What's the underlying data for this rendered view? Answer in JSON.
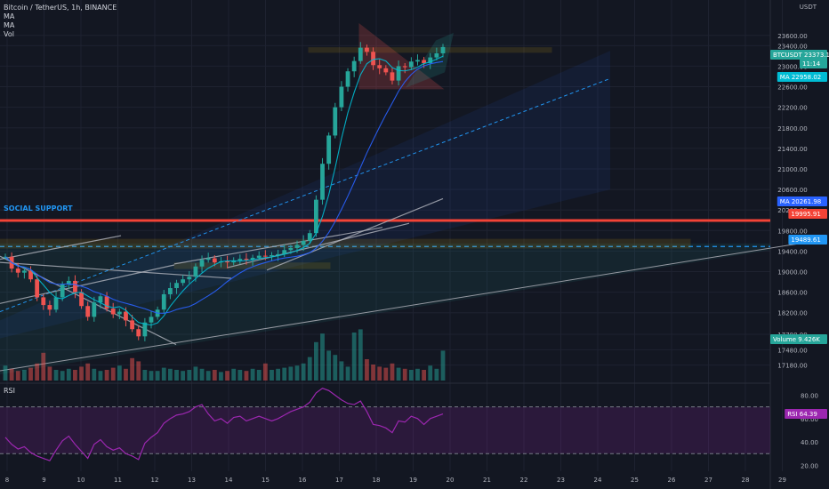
{
  "header": {
    "symbol_line": "Bitcoin / TetherUS, 1h, BINANCE",
    "indicators": [
      "MA",
      "MA",
      "Vol"
    ]
  },
  "rsi_label": "RSI",
  "annotation": "SOCIAL SUPPORT",
  "currency": "USDT",
  "colors": {
    "background": "#131722",
    "up": "#26a69a",
    "down": "#ef5350",
    "support": "#f44336",
    "rsi": "#9c27b0",
    "box": "#f0b90b"
  },
  "chart_data": {
    "type": "candlestick",
    "price_axis": {
      "min": 16880,
      "max": 24150,
      "ticks": [
        17180,
        17480,
        17780,
        18200,
        18600,
        19000,
        19400,
        19800,
        20200,
        20600,
        21000,
        21400,
        21800,
        22200,
        22600,
        23000,
        23400,
        23600
      ]
    },
    "x_axis_labels": [
      "8",
      "9",
      "10",
      "11",
      "12",
      "13",
      "14",
      "15",
      "16",
      "17",
      "18",
      "19",
      "20",
      "21",
      "22",
      "23",
      "24",
      "25",
      "26",
      "27",
      "28",
      "29"
    ],
    "price_tags": [
      {
        "label": "BTCUSDT",
        "value": "23373.11",
        "color": "#26a69a"
      },
      {
        "label": "",
        "value": "11:14",
        "color": "#26a69a"
      },
      {
        "label": "MA",
        "value": "22958.02",
        "color": "#00bcd4"
      },
      {
        "label": "MA",
        "value": "20261.98",
        "color": "#2962ff"
      },
      {
        "label": "",
        "value": "19995.91",
        "color": "#f44336"
      },
      {
        "label": "",
        "value": "19489.61",
        "color": "#2196f3"
      },
      {
        "label": "Volume",
        "value": "9.426K",
        "color": "#26a69a"
      },
      {
        "label": "RSI",
        "value": "64.39",
        "color": "#9c27b0"
      }
    ],
    "rsi_axis": {
      "min": 15,
      "max": 88,
      "ticks": [
        20,
        40,
        60,
        80
      ],
      "bands": [
        30,
        70
      ]
    },
    "key_levels": {
      "support": 19995.91,
      "dashed": 19489.61
    },
    "closes": [
      19290,
      19060,
      18980,
      19020,
      18850,
      18500,
      18350,
      18260,
      18500,
      18750,
      18820,
      18600,
      18330,
      18120,
      18400,
      18520,
      18280,
      18170,
      18220,
      18050,
      17880,
      17740,
      18010,
      18120,
      18260,
      18560,
      18680,
      18780,
      18850,
      18900,
      19100,
      19230,
      19260,
      19180,
      19200,
      19180,
      19220,
      19250,
      19230,
      19270,
      19310,
      19300,
      19320,
      19340,
      19420,
      19460,
      19520,
      19600,
      19750,
      20400,
      21100,
      21650,
      22200,
      22600,
      22900,
      23100,
      23360,
      23280,
      23020,
      22960,
      22880,
      22720,
      23000,
      22980,
      23090,
      23120,
      23060,
      23170,
      23250,
      23373
    ],
    "volumes": [
      1.4,
      1.1,
      0.9,
      1.0,
      1.2,
      1.6,
      2.6,
      1.3,
      1.0,
      0.9,
      1.1,
      1.0,
      1.3,
      1.6,
      1.1,
      0.9,
      1.0,
      1.2,
      1.4,
      1.1,
      2.1,
      1.8,
      1.0,
      0.9,
      0.9,
      1.2,
      1.1,
      1.0,
      0.9,
      1.0,
      1.3,
      1.1,
      0.9,
      1.0,
      0.8,
      0.9,
      1.1,
      1.0,
      0.9,
      1.1,
      1.0,
      1.6,
      1.0,
      1.1,
      1.2,
      1.3,
      1.4,
      1.6,
      2.2,
      3.6,
      4.4,
      2.8,
      2.4,
      1.8,
      1.3,
      4.5,
      4.8,
      2.0,
      1.5,
      1.3,
      1.2,
      1.6,
      1.2,
      1.1,
      1.0,
      1.1,
      1.0,
      1.4,
      1.1,
      2.8
    ],
    "rsi": [
      44,
      38,
      34,
      36,
      31,
      28,
      26,
      24,
      33,
      41,
      45,
      38,
      32,
      26,
      38,
      42,
      36,
      33,
      35,
      30,
      28,
      25,
      39,
      44,
      48,
      56,
      60,
      63,
      64,
      66,
      70,
      72,
      64,
      58,
      60,
      56,
      61,
      62,
      58,
      60,
      62,
      60,
      58,
      60,
      63,
      66,
      68,
      70,
      74,
      82,
      86,
      84,
      80,
      76,
      73,
      72,
      75,
      66,
      55,
      54,
      52,
      48,
      58,
      57,
      62,
      60,
      55,
      60,
      62,
      64
    ]
  }
}
